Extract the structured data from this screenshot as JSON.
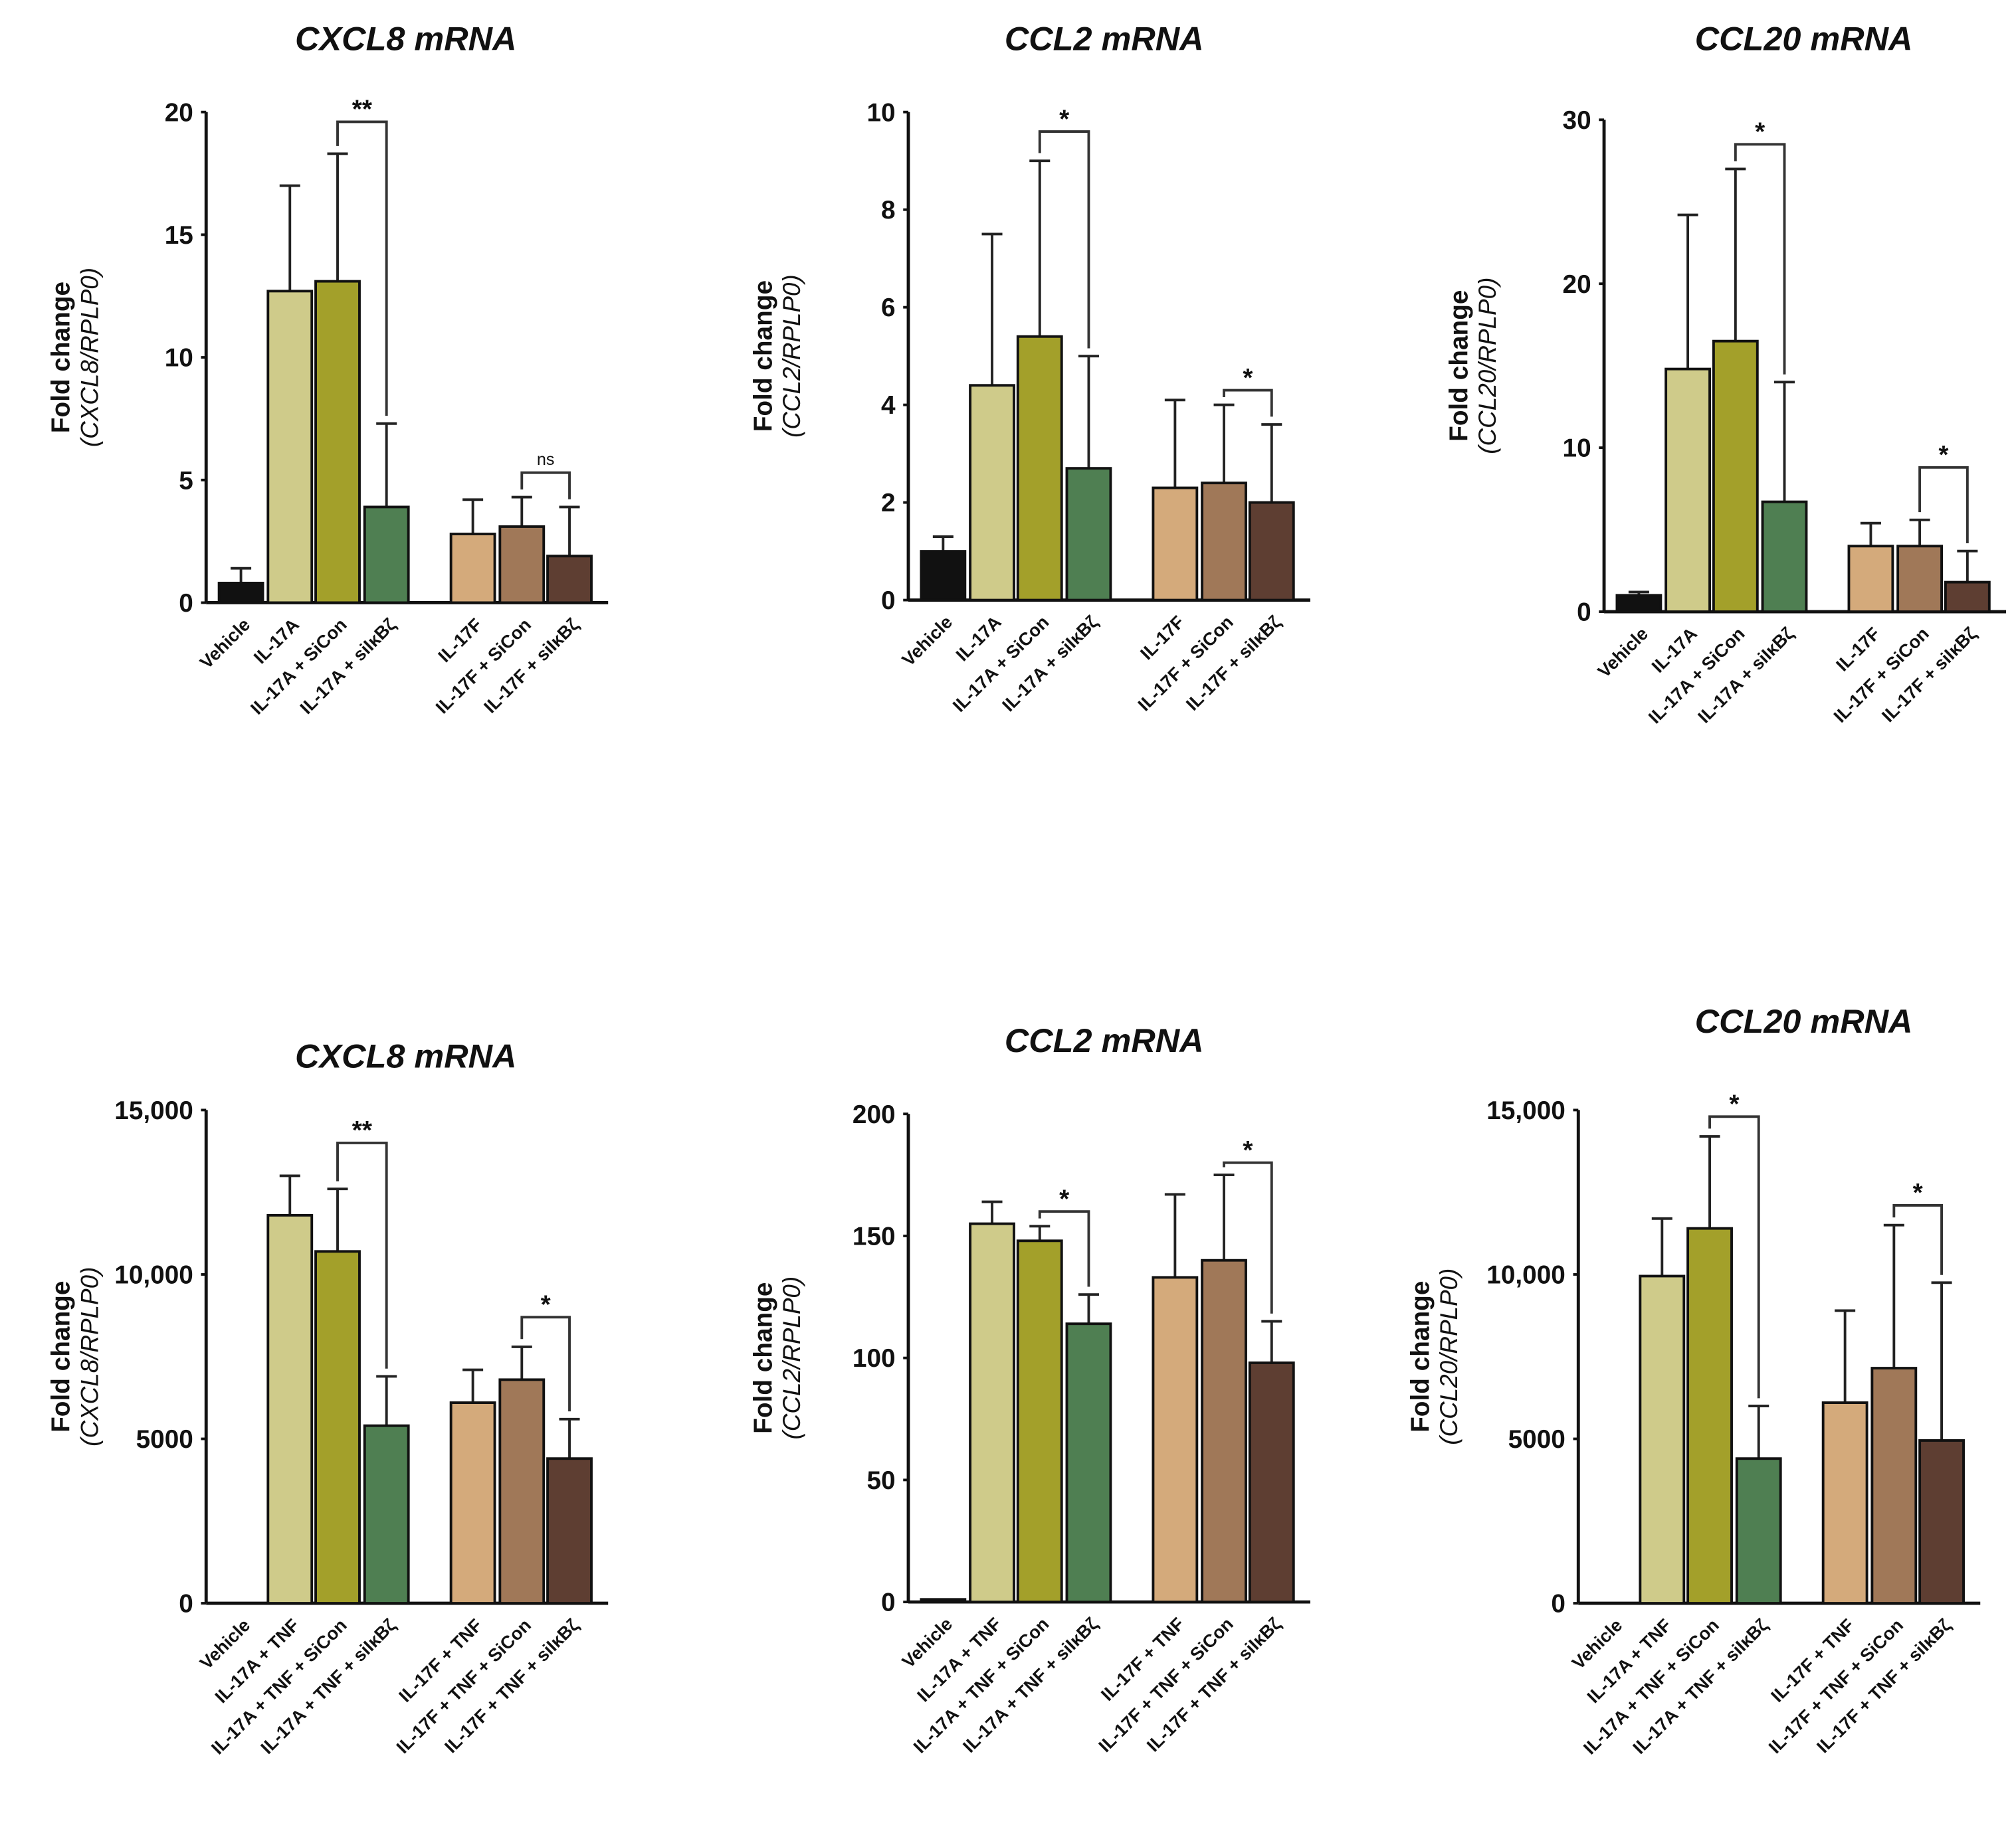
{
  "colors": [
    "#111111",
    "#cfcb8a",
    "#a3a02a",
    "#4f7f52",
    "#d4aa7b",
    "#a07858",
    "#5e3e32"
  ],
  "chart_data": [
    {
      "type": "bar",
      "title": "CXCL8 mRNA",
      "ylabel": "Fold change",
      "ylabel_sub": "(CXCL8/RPLP0)",
      "categories": [
        "Vehicle",
        "IL-17A",
        "IL-17A + SiCon",
        "IL-17A + siIκBζ",
        "IL-17F",
        "IL-17F +  SiCon",
        "IL-17F  + siIκBζ"
      ],
      "values": [
        0.8,
        12.7,
        13.1,
        3.9,
        2.8,
        3.1,
        1.9
      ],
      "error_upper": [
        1.4,
        17.0,
        18.3,
        7.3,
        4.2,
        4.3,
        3.9
      ],
      "ylim": [
        0,
        20
      ],
      "yticks": [
        0,
        5,
        10,
        15,
        20
      ],
      "ytick_labels": [
        "0",
        "5",
        "10",
        "15",
        "20"
      ],
      "significance": [
        {
          "from": 2,
          "to": 3,
          "label": "**",
          "y": 19.6
        },
        {
          "from": 5,
          "to": 6,
          "label": "ns",
          "y": 5.3
        }
      ]
    },
    {
      "type": "bar",
      "title": "CCL2 mRNA",
      "ylabel": "Fold change",
      "ylabel_sub": "(CCL2/RPLP0)",
      "categories": [
        "Vehicle",
        "IL-17A",
        "IL-17A + SiCon",
        "IL-17A + siIκBζ",
        "IL-17F",
        "IL-17F + SiCon",
        "IL-17F  + siIκBζ"
      ],
      "values": [
        1.0,
        4.4,
        5.4,
        2.7,
        2.3,
        2.4,
        2.0
      ],
      "error_upper": [
        1.3,
        7.5,
        9.0,
        5.0,
        4.1,
        4.0,
        3.6
      ],
      "ylim": [
        0,
        10
      ],
      "yticks": [
        0,
        2,
        4,
        6,
        8,
        10
      ],
      "ytick_labels": [
        "0",
        "2",
        "4",
        "6",
        "8",
        "10"
      ],
      "significance": [
        {
          "from": 2,
          "to": 3,
          "label": "*",
          "y": 9.6
        },
        {
          "from": 5,
          "to": 6,
          "label": "*",
          "y": 4.3
        }
      ]
    },
    {
      "type": "bar",
      "title": "CCL20 mRNA",
      "ylabel": "Fold change",
      "ylabel_sub": "(CCL20/RPLP0)",
      "categories": [
        "Vehicle",
        "IL-17A",
        "IL-17A + SiCon",
        "IL-17A + siIκBζ",
        "IL-17F",
        "IL-17F +  SiCon",
        "IL-17F  + siIκBζ"
      ],
      "values": [
        1.0,
        14.8,
        16.5,
        6.7,
        4.0,
        4.0,
        1.8
      ],
      "error_upper": [
        1.2,
        24.2,
        27.0,
        14.0,
        5.4,
        5.6,
        3.7
      ],
      "ylim": [
        0,
        30
      ],
      "yticks": [
        0,
        10,
        20,
        30
      ],
      "ytick_labels": [
        "0",
        "10",
        "20",
        "30"
      ],
      "significance": [
        {
          "from": 2,
          "to": 3,
          "label": "*",
          "y": 28.5
        },
        {
          "from": 5,
          "to": 6,
          "label": "*",
          "y": 8.8
        }
      ]
    },
    {
      "type": "bar",
      "title": "CXCL8 mRNA",
      "ylabel": "Fold change",
      "ylabel_sub": "(CXCL8/RPLP0)",
      "categories": [
        "Vehicle",
        "IL-17A + TNF",
        "IL-17A + TNF + SiCon",
        "IL-17A + TNF + siIκBζ",
        "IL-17F + TNF",
        "IL-17F + TNF + SiCon",
        "IL-17F + TNF + siIκBζ"
      ],
      "values": [
        0,
        11800,
        10700,
        5400,
        6100,
        6800,
        4400
      ],
      "error_upper": [
        0,
        13000,
        12600,
        6900,
        7100,
        7800,
        5600
      ],
      "ylim": [
        0,
        15000
      ],
      "yticks": [
        0,
        5000,
        10000,
        15000
      ],
      "ytick_labels": [
        "0",
        "5000",
        "10,000",
        "15,000"
      ],
      "significance": [
        {
          "from": 2,
          "to": 3,
          "label": "**",
          "y": 14000
        },
        {
          "from": 5,
          "to": 6,
          "label": "*",
          "y": 8700
        }
      ]
    },
    {
      "type": "bar",
      "title": "CCL2 mRNA",
      "ylabel": "Fold change",
      "ylabel_sub": "(CCL2/RPLP0)",
      "categories": [
        "Vehicle",
        "IL-17A + TNF",
        "IL-17A + TNF + SiCon",
        "IL-17A + TNF + siIκBζ",
        "IL-17F + TNF",
        "IL-17F + TNF + SiCon",
        "IL-17F + TNF + siIκBζ"
      ],
      "values": [
        1,
        155,
        148,
        114,
        133,
        140,
        98
      ],
      "error_upper": [
        1,
        164,
        154,
        126,
        167,
        175,
        115
      ],
      "ylim": [
        0,
        200
      ],
      "yticks": [
        0,
        50,
        100,
        150,
        200
      ],
      "ytick_labels": [
        "0",
        "50",
        "100",
        "150",
        "200"
      ],
      "significance": [
        {
          "from": 2,
          "to": 3,
          "label": "*",
          "y": 160
        },
        {
          "from": 5,
          "to": 6,
          "label": "*",
          "y": 180
        }
      ]
    },
    {
      "type": "bar",
      "title": "CCL20 mRNA",
      "ylabel": "Fold change",
      "ylabel_sub": "(CCL20/RPLP0)",
      "categories": [
        "Vehicle",
        "IL-17A + TNF",
        "IL-17A + TNF + SiCon",
        "IL-17A + TNF + siIκBζ",
        "IL-17F + TNF",
        "IL-17F + TNF + SiCon",
        "IL-17F + TNF + siIκBζ"
      ],
      "values": [
        0,
        9950,
        11400,
        4400,
        6100,
        7150,
        4950
      ],
      "error_upper": [
        0,
        11700,
        14200,
        6000,
        8900,
        11500,
        9750
      ],
      "ylim": [
        0,
        15000
      ],
      "yticks": [
        0,
        5000,
        10000,
        15000
      ],
      "ytick_labels": [
        "0",
        "5000",
        "10,000",
        "15,000"
      ],
      "significance": [
        {
          "from": 2,
          "to": 3,
          "label": "*",
          "y": 14800
        },
        {
          "from": 5,
          "to": 6,
          "label": "*",
          "y": 12100
        }
      ]
    }
  ]
}
